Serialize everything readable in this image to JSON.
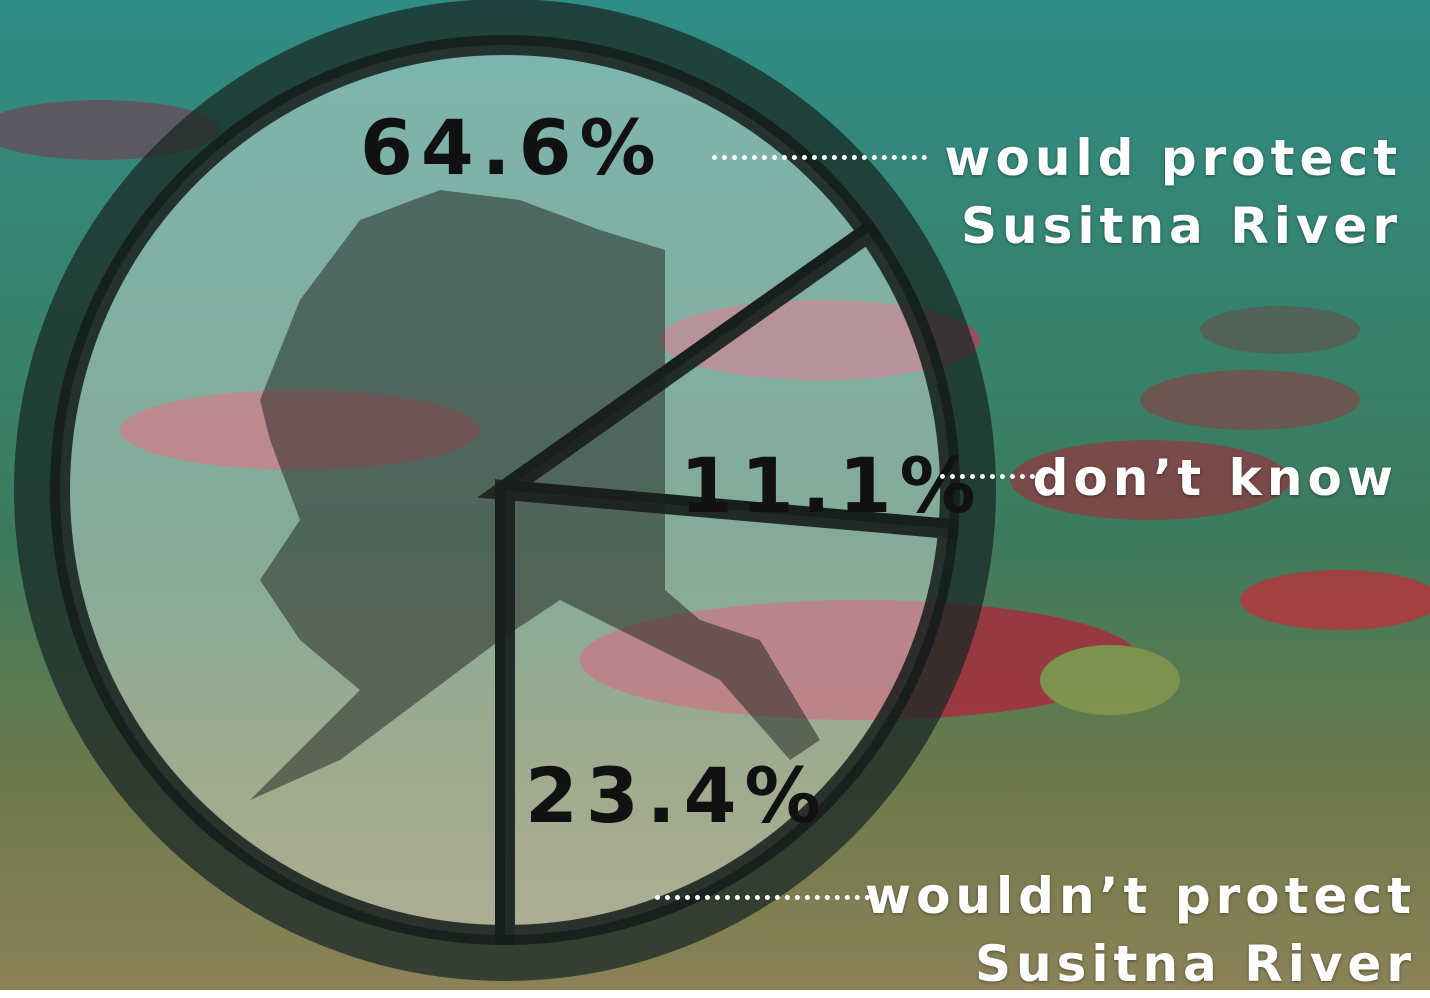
{
  "chart_data": {
    "type": "pie",
    "categories": [
      "would protect Susitna River",
      "don’t know",
      "wouldn’t protect Susitna River"
    ],
    "values": [
      64.6,
      11.1,
      23.4
    ],
    "value_labels": [
      "64.6%",
      "11.1%",
      "23.4%"
    ],
    "color": "#e6efec"
  }
}
